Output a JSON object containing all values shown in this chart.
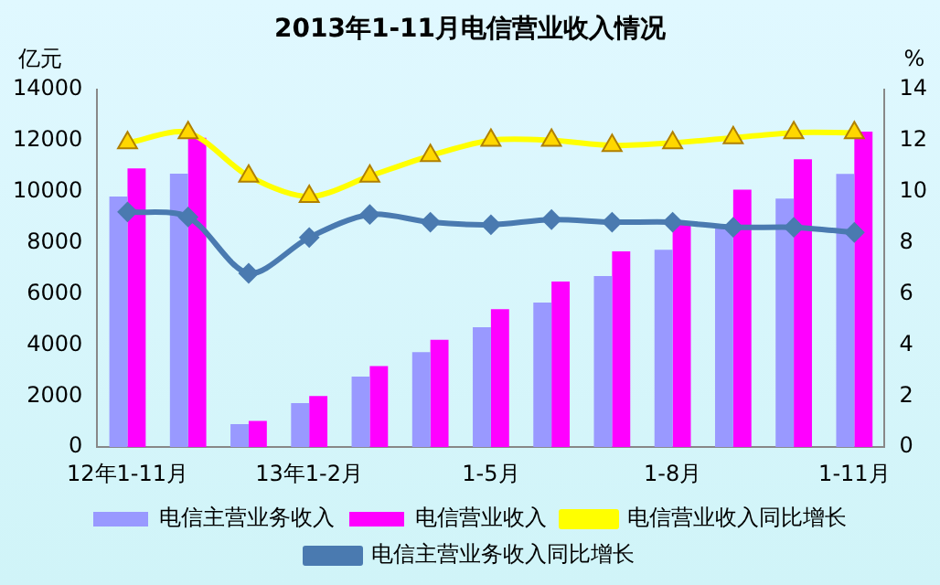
{
  "chart_data": {
    "type": "bar",
    "title": "2013年1-11月电信营业收入情况",
    "ylabel": "亿元",
    "y2label": "%",
    "categories": [
      "12年1-11月",
      null,
      null,
      "13年1-2月",
      null,
      null,
      "1-5月",
      null,
      null,
      "1-8月",
      null,
      null,
      "1-11月"
    ],
    "series": [
      {
        "name": "电信主营业务收入",
        "color": "#9999ff",
        "values": [
          9800,
          10700,
          900,
          1720,
          2760,
          3720,
          4690,
          5660,
          6690,
          7720,
          8620,
          9720,
          10690
        ]
      },
      {
        "name": "电信营业收入",
        "color": "#ff00ff",
        "values": [
          10900,
          12100,
          1030,
          2000,
          3170,
          4200,
          5400,
          6480,
          7660,
          8740,
          10070,
          11260,
          12340
        ]
      },
      {
        "name": "电信营业收入同比增长",
        "type": "line",
        "axis": "y2",
        "color": "#ffff00",
        "marker": "triangle",
        "values": [
          11.9,
          12.3,
          10.6,
          9.8,
          10.6,
          11.4,
          12.0,
          12.0,
          11.8,
          11.9,
          12.1,
          12.3,
          12.3
        ]
      },
      {
        "name": "电信主营业务收入同比增长",
        "type": "line",
        "axis": "y2",
        "color": "#4a7ab0",
        "marker": "diamond",
        "values": [
          9.2,
          9.0,
          6.8,
          8.2,
          9.1,
          8.8,
          8.7,
          8.9,
          8.8,
          8.8,
          8.6,
          8.6,
          8.4
        ]
      }
    ],
    "ylim": [
      0,
      14000
    ],
    "yticks": [
      0,
      2000,
      4000,
      6000,
      8000,
      10000,
      12000,
      14000
    ],
    "y2lim": [
      0,
      14
    ],
    "y2ticks": [
      0,
      2,
      4,
      6,
      8,
      10,
      12,
      14
    ],
    "grid": false,
    "legend": "bottom"
  }
}
